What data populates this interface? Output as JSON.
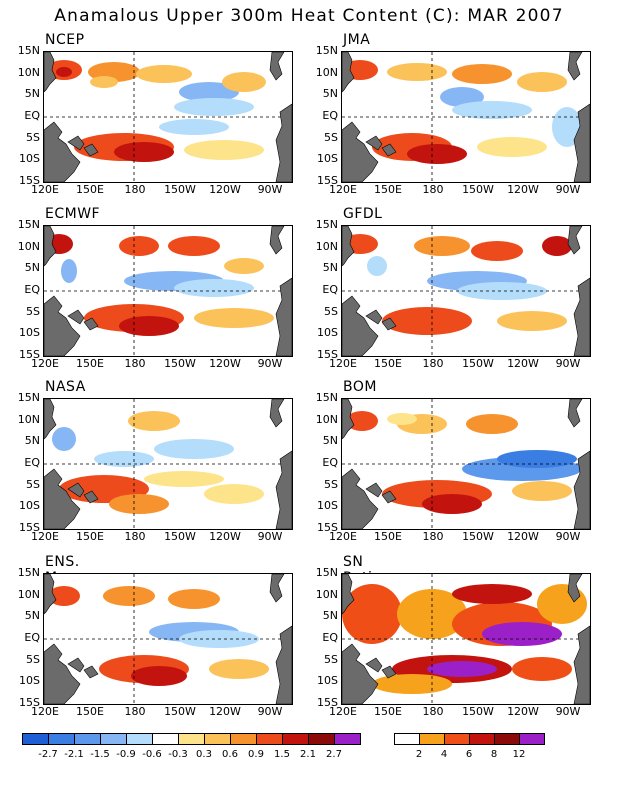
{
  "title": "Anamalous Upper 300m Heat Content (C): MAR 2007",
  "lat_labels": [
    "15N",
    "10N",
    "5N",
    "EQ",
    "5S",
    "10S",
    "15S"
  ],
  "lon_labels": [
    "120E",
    "150E",
    "180",
    "150W",
    "120W",
    "90W"
  ],
  "panels": [
    {
      "name": "NCEP"
    },
    {
      "name": "JMA"
    },
    {
      "name": "ECMWF"
    },
    {
      "name": "GFDL"
    },
    {
      "name": "NASA"
    },
    {
      "name": "BOM"
    },
    {
      "name": "ENS. Mean"
    },
    {
      "name": "SN Ratio"
    }
  ],
  "anomaly_colorbar": {
    "colors": [
      "#1f5fd6",
      "#3b7ee3",
      "#5c98ec",
      "#86b6f4",
      "#b4dcfb",
      "#ffffff",
      "#fde48a",
      "#fcc25a",
      "#f7932e",
      "#ee4b1c",
      "#c3130e",
      "#8c0a0a",
      "#9b20c7"
    ],
    "labels": [
      "-2.7",
      "-2.1",
      "-1.5",
      "-0.9",
      "-0.6",
      "-0.3",
      "0.3",
      "0.6",
      "0.9",
      "1.5",
      "2.1",
      "2.7"
    ]
  },
  "snr_colorbar": {
    "colors": [
      "#ffffff",
      "#f7a21c",
      "#ef4e16",
      "#c3130e",
      "#8c0a0a",
      "#9b20c7"
    ],
    "labels": [
      "2",
      "4",
      "6",
      "8",
      "12"
    ]
  },
  "colors": {
    "land": "#6b6b6b",
    "border": "#000000"
  }
}
